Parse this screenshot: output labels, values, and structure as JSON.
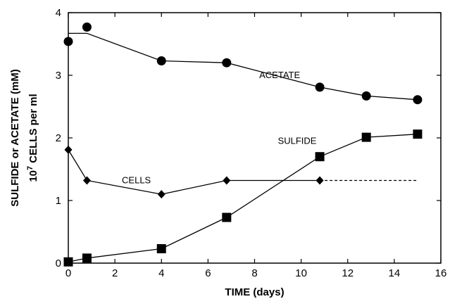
{
  "chart_data": {
    "type": "line",
    "xlabel": "TIME (days)",
    "ylabel_outer": "SULFIDE or ACETATE (mM)",
    "ylabel_inner_base": "10",
    "ylabel_inner_exp": "7",
    "ylabel_inner_rest": " CELLS per ml",
    "xlim": [
      0,
      16
    ],
    "ylim": [
      0,
      4
    ],
    "xticks": [
      "0",
      "2",
      "4",
      "6",
      "8",
      "10",
      "12",
      "14",
      "16"
    ],
    "yticks": [
      "0",
      "1",
      "2",
      "3",
      "4"
    ],
    "xtick_values": [
      0,
      2,
      4,
      6,
      8,
      10,
      12,
      14,
      16
    ],
    "ytick_values": [
      0,
      1,
      2,
      3,
      4
    ],
    "series": [
      {
        "name": "ACETATE",
        "marker": "circle",
        "points": [
          [
            0,
            3.54
          ],
          [
            0.8,
            3.77
          ],
          [
            4,
            3.23
          ],
          [
            6.8,
            3.2
          ],
          [
            10.8,
            2.81
          ],
          [
            12.8,
            2.67
          ],
          [
            15,
            2.61
          ]
        ],
        "line": [
          [
            0,
            3.67
          ],
          [
            0.8,
            3.67
          ],
          [
            4,
            3.23
          ],
          [
            6.8,
            3.2
          ],
          [
            10.8,
            2.81
          ],
          [
            12.8,
            2.67
          ],
          [
            15,
            2.61
          ]
        ]
      },
      {
        "name": "CELLS",
        "marker": "diamond",
        "points": [
          [
            0,
            1.81
          ],
          [
            0.8,
            1.32
          ],
          [
            4,
            1.1
          ],
          [
            6.8,
            1.32
          ],
          [
            10.8,
            1.32
          ]
        ],
        "line": [
          [
            0,
            1.81
          ],
          [
            0.8,
            1.32
          ],
          [
            4,
            1.1
          ],
          [
            6.8,
            1.32
          ],
          [
            10.8,
            1.32
          ]
        ],
        "dashed_extension": [
          [
            10.8,
            1.32
          ],
          [
            15,
            1.32
          ]
        ]
      },
      {
        "name": "SULFIDE",
        "marker": "square",
        "points": [
          [
            0,
            0.02
          ],
          [
            0.8,
            0.08
          ],
          [
            4,
            0.23
          ],
          [
            6.8,
            0.73
          ],
          [
            10.8,
            1.7
          ],
          [
            12.8,
            2.01
          ],
          [
            15,
            2.06
          ]
        ],
        "line": [
          [
            0,
            0.02
          ],
          [
            0.8,
            0.08
          ],
          [
            4,
            0.23
          ],
          [
            6.8,
            0.73
          ],
          [
            10.8,
            1.7
          ],
          [
            12.8,
            2.01
          ],
          [
            15,
            2.06
          ]
        ]
      }
    ],
    "annotations": [
      {
        "text": "ACETATE",
        "x": 8.2,
        "y": 3.0,
        "series": "ACETATE"
      },
      {
        "text": "CELLS",
        "x": 2.3,
        "y": 1.32,
        "series": "CELLS"
      },
      {
        "text": "SULFIDE",
        "x": 9.0,
        "y": 1.95,
        "series": "SULFIDE"
      }
    ]
  }
}
